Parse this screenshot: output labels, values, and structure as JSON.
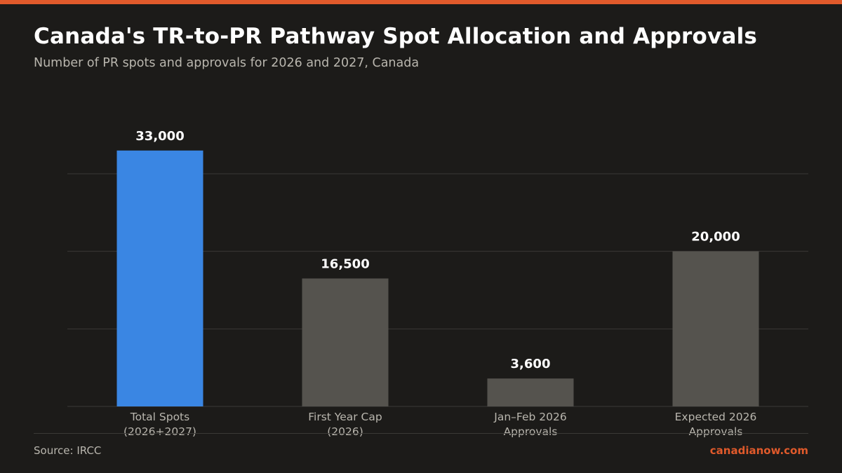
{
  "header": {
    "title": "Canada's TR-to-PR Pathway Spot Allocation and Approvals",
    "subtitle": "Number of PR spots and approvals for 2026 and 2027, Canada"
  },
  "footer": {
    "source": "Source: IRCC",
    "brand": "canadianow.com"
  },
  "colors": {
    "background": "#1c1b19",
    "accent": "#e05a2b",
    "highlight_bar": "#3a86e3",
    "default_bar": "#55534e",
    "grid": "#3a3936"
  },
  "chart_data": {
    "type": "bar",
    "title": "Canada's TR-to-PR Pathway Spot Allocation and Approvals",
    "subtitle": "Number of PR spots and approvals for 2026 and 2027, Canada",
    "categories": [
      [
        "Total Spots",
        "(2026+2027)"
      ],
      [
        "First Year Cap",
        "(2026)"
      ],
      [
        "Jan–Feb 2026",
        "Approvals"
      ],
      [
        "Expected 2026",
        "Approvals"
      ]
    ],
    "values": [
      33000,
      16500,
      3600,
      20000
    ],
    "value_labels": [
      "33,000",
      "16,500",
      "3,600",
      "20,000"
    ],
    "highlight_index": 0,
    "ylim": [
      0,
      30000
    ],
    "gridlines": [
      0,
      10000,
      20000,
      30000
    ],
    "grid": true,
    "xlabel": "",
    "ylabel": ""
  }
}
